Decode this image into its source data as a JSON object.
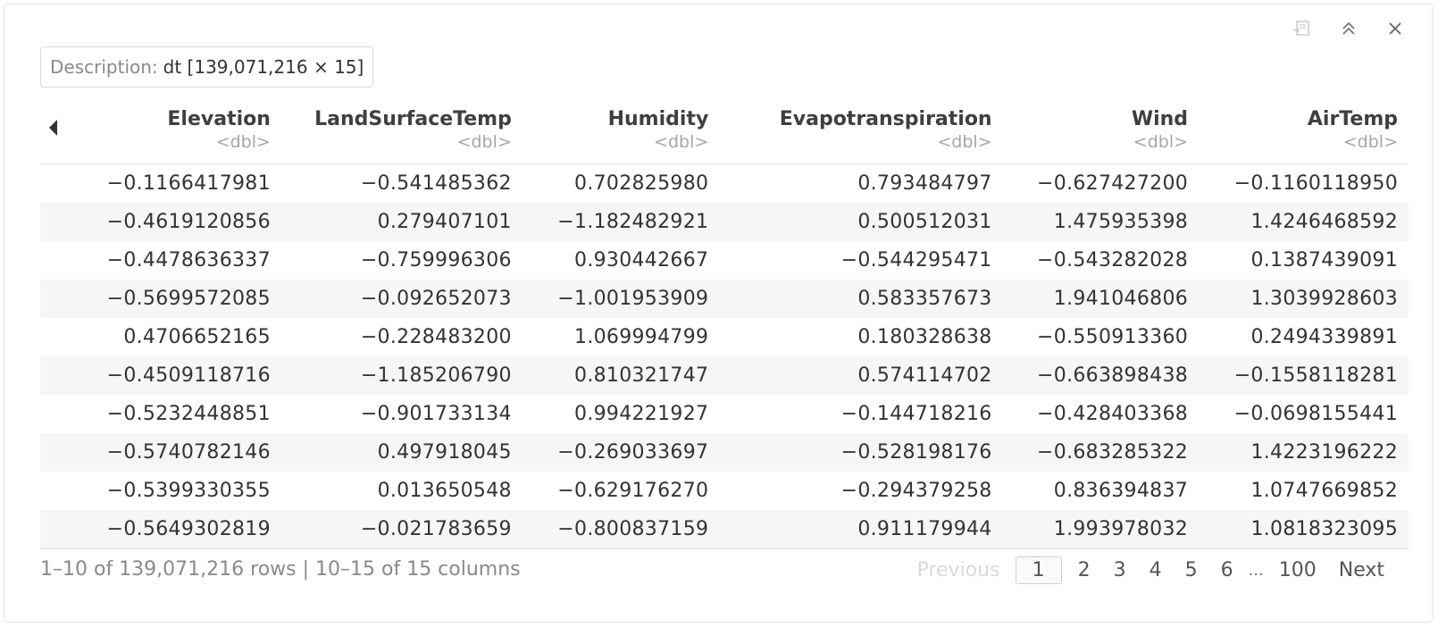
{
  "toolbar": {
    "icons": [
      "export-icon",
      "collapse-icon",
      "close-icon"
    ]
  },
  "description": {
    "label": "Description:",
    "value": "dt [139,071,216 × 15]"
  },
  "table": {
    "columns": [
      {
        "name": "Elevation",
        "type": "<dbl>"
      },
      {
        "name": "LandSurfaceTemp",
        "type": "<dbl>"
      },
      {
        "name": "Humidity",
        "type": "<dbl>"
      },
      {
        "name": "Evapotranspiration",
        "type": "<dbl>"
      },
      {
        "name": "Wind",
        "type": "<dbl>"
      },
      {
        "name": "AirTemp",
        "type": "<dbl>"
      }
    ],
    "rows": [
      [
        "−0.1166417981",
        "−0.541485362",
        "0.702825980",
        "0.793484797",
        "−0.627427200",
        "−0.1160118950"
      ],
      [
        "−0.4619120856",
        "0.279407101",
        "−1.182482921",
        "0.500512031",
        "1.475935398",
        "1.4246468592"
      ],
      [
        "−0.4478636337",
        "−0.759996306",
        "0.930442667",
        "−0.544295471",
        "−0.543282028",
        "0.1387439091"
      ],
      [
        "−0.5699572085",
        "−0.092652073",
        "−1.001953909",
        "0.583357673",
        "1.941046806",
        "1.3039928603"
      ],
      [
        "0.4706652165",
        "−0.228483200",
        "1.069994799",
        "0.180328638",
        "−0.550913360",
        "0.2494339891"
      ],
      [
        "−0.4509118716",
        "−1.185206790",
        "0.810321747",
        "0.574114702",
        "−0.663898438",
        "−0.1558118281"
      ],
      [
        "−0.5232448851",
        "−0.901733134",
        "0.994221927",
        "−0.144718216",
        "−0.428403368",
        "−0.0698155441"
      ],
      [
        "−0.5740782146",
        "0.497918045",
        "−0.269033697",
        "−0.528198176",
        "−0.683285322",
        "1.4223196222"
      ],
      [
        "−0.5399330355",
        "0.013650548",
        "−0.629176270",
        "−0.294379258",
        "0.836394837",
        "1.0747669852"
      ],
      [
        "−0.5649302819",
        "−0.021783659",
        "−0.800837159",
        "0.911179944",
        "1.993978032",
        "1.0818323095"
      ]
    ]
  },
  "footer": {
    "info": "1–10 of 139,071,216 rows | 10–15 of 15 columns"
  },
  "pagination": {
    "previous": "Previous",
    "current": "1",
    "pages": [
      "2",
      "3",
      "4",
      "5",
      "6"
    ],
    "ellipsis": "...",
    "last": "100",
    "next": "Next"
  }
}
